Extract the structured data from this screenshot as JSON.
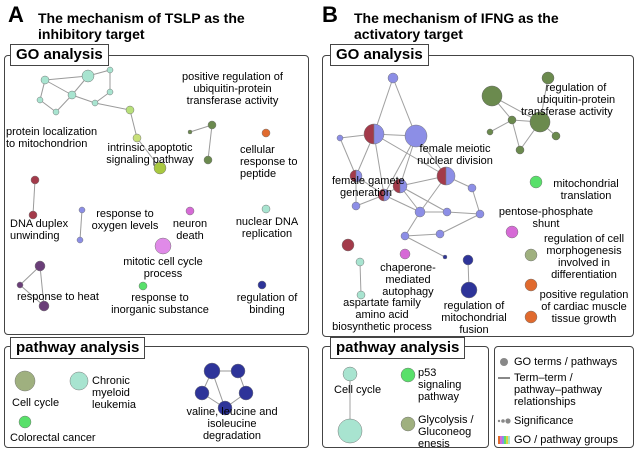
{
  "panels": {
    "A": {
      "letter": "A",
      "title_line1": "The mechanism of TSLP as the",
      "title_line2": "inhibitory target",
      "go_title": "GO analysis",
      "pathway_title": "pathway analysis",
      "go_labels": [
        "positive regulation of",
        "ubiquitin-protein",
        "transferase activity",
        "protein localization",
        "to mitochondrion",
        "cellular",
        "response to",
        "peptide",
        "intrinsic apoptotic",
        "signaling pathway",
        "DNA duplex",
        "unwinding",
        "response to",
        "oxygen levels",
        "neuron",
        "death",
        "nuclear DNA",
        "replication",
        "mitotic cell cycle",
        "process",
        "response to heat",
        "response to",
        "inorganic substance",
        "regulation of",
        "binding"
      ],
      "pathway_labels": [
        "Cell cycle",
        "Chronic",
        "myeloid",
        "leukemia",
        "valine, leucine and",
        "isoleucine",
        "degradation",
        "Colorectal cancer"
      ]
    },
    "B": {
      "letter": "B",
      "title_line1": "The mechanism of IFNG as the",
      "title_line2": "activatory target",
      "go_title": "GO analysis",
      "pathway_title": "pathway analysis",
      "go_labels": [
        "regulation of",
        "ubiquitin-protein",
        "transferase activity",
        "female meiotic",
        "nuclear division",
        "female gamete",
        "generation",
        "mitochondrial",
        "translation",
        "pentose-phosphate",
        "shunt",
        "regulation of cell",
        "morphogenesis",
        "involved in",
        "differentiation",
        "chaperone-",
        "mediated",
        "autophagy",
        "positive regulation",
        "of cardiac muscle",
        "tissue growth",
        "aspartate family",
        "amino acid",
        "biosynthetic process",
        "regulation of",
        "mitochondrial",
        "fusion"
      ],
      "pathway_labels": [
        "Cell cycle",
        "p53",
        "signaling",
        "pathway",
        "Glycolysis /",
        "Gluconeog",
        "enesis"
      ]
    }
  },
  "legend": {
    "items": [
      "GO terms / pathways",
      "Term–term /",
      "pathway–pathway",
      "relationships",
      "Significance",
      "GO / pathway groups"
    ]
  },
  "colors": {
    "teal": "#a8e4d0",
    "olive": "#6b8a4e",
    "orange": "#e06a2e",
    "maroon": "#a33a4a",
    "purple": "#6a3e78",
    "blue": "#8c8ee6",
    "navy": "#2e3499",
    "magenta": "#d66ad6",
    "green": "#58e06a",
    "sage": "#9fb07f"
  }
}
